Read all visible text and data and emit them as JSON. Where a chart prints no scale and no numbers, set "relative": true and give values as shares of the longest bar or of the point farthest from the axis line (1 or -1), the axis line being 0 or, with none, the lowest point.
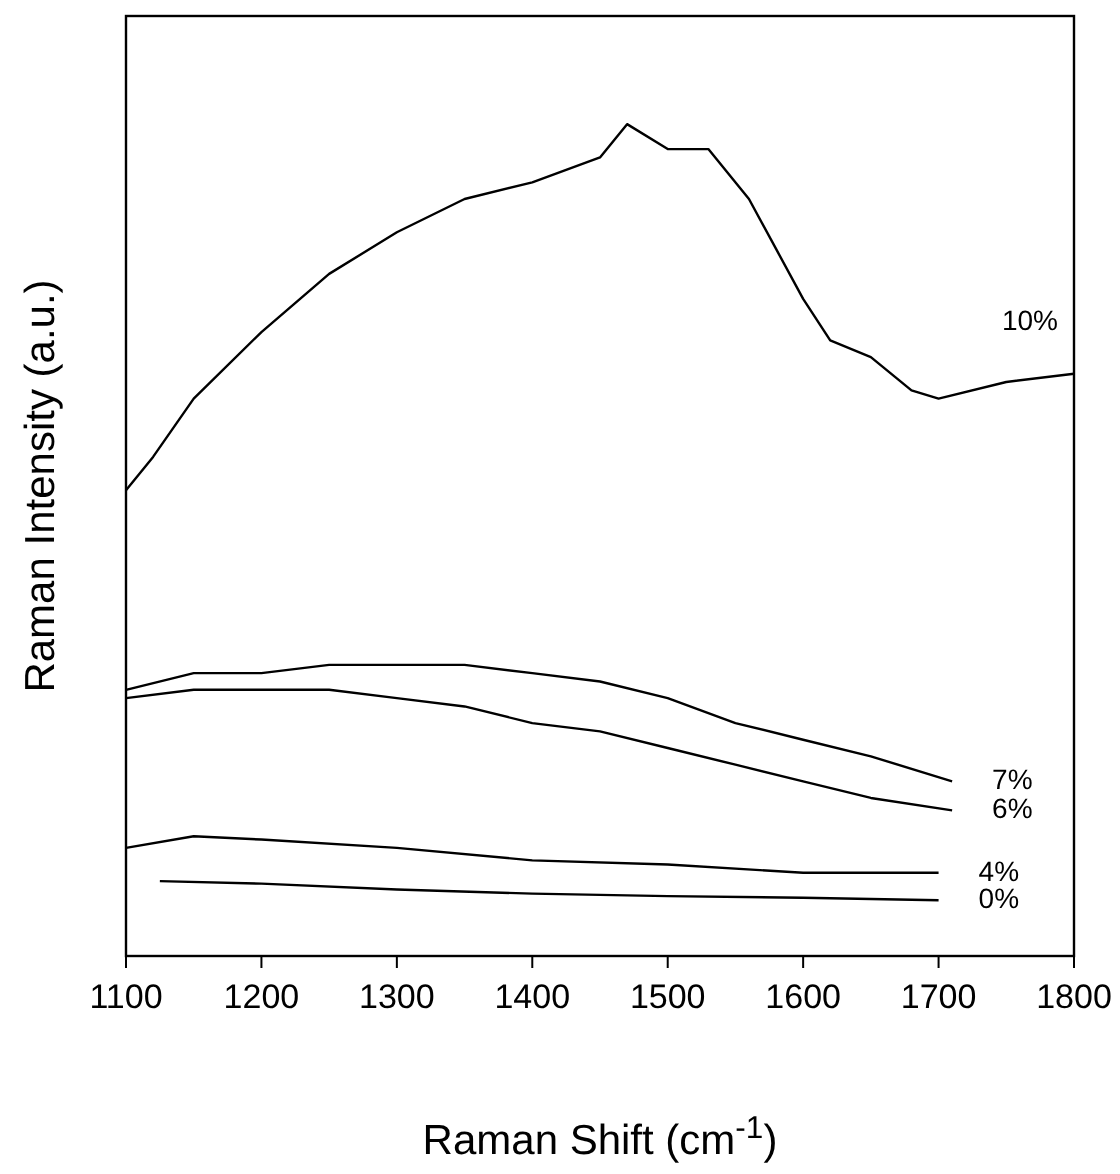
{
  "chart_data": {
    "type": "line",
    "relative": true,
    "xlabel": "Raman Shift (cm$^{-1}$)",
    "ylabel": "Raman Intensity (a.u.)",
    "xlim": [
      1100,
      1800
    ],
    "xticks": [
      1100,
      1200,
      1300,
      1400,
      1500,
      1600,
      1700,
      1800
    ],
    "tick_labels": "x",
    "grid": false,
    "marker": "none",
    "line_style": "solid",
    "series": [
      {
        "name": "10%",
        "color": "#000000",
        "x": [
          1100,
          1120,
          1150,
          1200,
          1250,
          1300,
          1350,
          1400,
          1450,
          1470,
          1500,
          1530,
          1560,
          1580,
          1600,
          1620,
          1650,
          1680,
          1700,
          1750,
          1800
        ],
        "values": [
          0.56,
          0.6,
          0.67,
          0.75,
          0.82,
          0.87,
          0.91,
          0.93,
          0.96,
          1.0,
          0.97,
          0.97,
          0.91,
          0.85,
          0.79,
          0.74,
          0.72,
          0.68,
          0.67,
          0.69,
          0.7
        ]
      },
      {
        "name": "7%",
        "color": "#000000",
        "x": [
          1100,
          1150,
          1200,
          1250,
          1300,
          1350,
          1400,
          1450,
          1500,
          1550,
          1600,
          1650,
          1710
        ],
        "values": [
          0.32,
          0.34,
          0.34,
          0.35,
          0.35,
          0.35,
          0.34,
          0.33,
          0.31,
          0.28,
          0.26,
          0.24,
          0.21
        ]
      },
      {
        "name": "6%",
        "color": "#000000",
        "x": [
          1100,
          1150,
          1200,
          1250,
          1300,
          1350,
          1400,
          1450,
          1500,
          1550,
          1600,
          1650,
          1710
        ],
        "values": [
          0.31,
          0.32,
          0.32,
          0.32,
          0.31,
          0.3,
          0.28,
          0.27,
          0.25,
          0.23,
          0.21,
          0.19,
          0.175
        ]
      },
      {
        "name": "4%",
        "color": "#000000",
        "x": [
          1100,
          1150,
          1200,
          1300,
          1400,
          1500,
          1600,
          1700
        ],
        "values": [
          0.13,
          0.144,
          0.14,
          0.13,
          0.115,
          0.11,
          0.1,
          0.1
        ]
      },
      {
        "name": "0%",
        "color": "#000000",
        "x": [
          1125,
          1200,
          1300,
          1400,
          1500,
          1600,
          1700
        ],
        "values": [
          0.09,
          0.087,
          0.08,
          0.075,
          0.072,
          0.07,
          0.067
        ]
      }
    ]
  }
}
